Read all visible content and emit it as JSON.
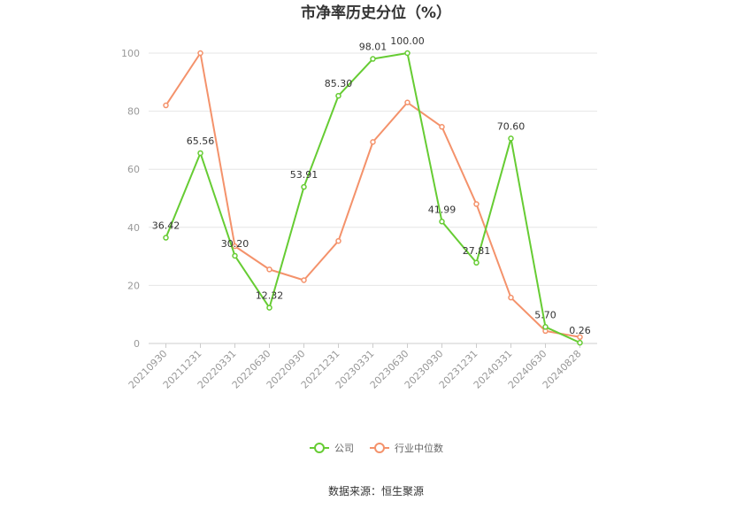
{
  "chart_data": {
    "type": "line",
    "title": "市净率历史分位（%）",
    "categories": [
      "20210930",
      "20211231",
      "20220331",
      "20220630",
      "20220930",
      "20221231",
      "20230331",
      "20230630",
      "20230930",
      "20231231",
      "20240331",
      "20240630",
      "20240828"
    ],
    "ylim": [
      0,
      100
    ],
    "yticks": [
      "0",
      "20",
      "40",
      "60",
      "80",
      "100"
    ],
    "grid": true,
    "legend_position": "bottom",
    "series": [
      {
        "name": "公司",
        "color": "#66cc33",
        "values": [
          36.42,
          65.56,
          30.2,
          12.32,
          53.91,
          85.3,
          98.01,
          100.0,
          41.99,
          27.81,
          70.6,
          5.7,
          0.26
        ],
        "labels": [
          "36.42",
          "65.56",
          "30.20",
          "12.32",
          "53.91",
          "85.30",
          "98.01",
          "100.00",
          "41.99",
          "27.81",
          "70.60",
          "5.70",
          "0.26"
        ]
      },
      {
        "name": "行业中位数",
        "color": "#f4926b",
        "values": [
          82,
          100,
          33.5,
          25.5,
          21.8,
          35.3,
          69.4,
          83,
          74.6,
          48,
          15.8,
          4.3,
          2.2
        ]
      }
    ]
  },
  "source": "数据来源：恒生聚源"
}
